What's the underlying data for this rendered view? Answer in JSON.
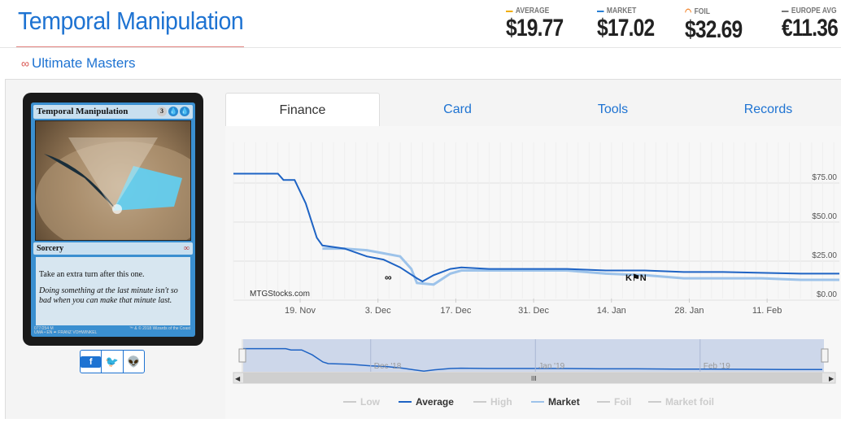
{
  "header": {
    "title": "Temporal Manipulation",
    "set_name": "Ultimate Masters",
    "prices": [
      {
        "label": "AVERAGE",
        "value": "$19.77",
        "color": "#f0ad00"
      },
      {
        "label": "MARKET",
        "value": "$17.02",
        "color": "#2a7fd4"
      },
      {
        "label": "FOIL",
        "value": "$32.69",
        "color": "#f07a1a"
      },
      {
        "label": "EUROPE AVG",
        "value": "€11.36",
        "color": "#777777"
      }
    ]
  },
  "card": {
    "name": "Temporal Manipulation",
    "mana": [
      "3",
      "U",
      "U"
    ],
    "type": "Sorcery",
    "rules_text": "Take an extra turn after this one.",
    "flavor_text": "Doing something at the last minute isn't so bad when you can make that minute last.",
    "footer_line1": "077/254 M",
    "footer_line2": "UMA • EN ✒ FRANZ VOHWINKEL",
    "copyright": "™ & © 2018 Wizards of the Coast"
  },
  "share": {
    "facebook": "f",
    "twitter": "t",
    "reddit": "r"
  },
  "tabs": [
    "Finance",
    "Card",
    "Tools",
    "Records"
  ],
  "active_tab": "Finance",
  "chart_data": {
    "type": "line",
    "watermark": "MTGStocks.com",
    "x_ticks": [
      "19. Nov",
      "3. Dec",
      "17. Dec",
      "31. Dec",
      "14. Jan",
      "28. Jan",
      "11. Feb"
    ],
    "y_ticks": [
      "$0.00",
      "$25.00",
      "$50.00",
      "$75.00"
    ],
    "ylim": [
      0,
      100
    ],
    "navigator_ticks": [
      "Dec '18",
      "Jan '19",
      "Feb '19"
    ],
    "legend": [
      {
        "name": "Low",
        "active": false
      },
      {
        "name": "Average",
        "active": true,
        "color": "#1e63c4"
      },
      {
        "name": "High",
        "active": false
      },
      {
        "name": "Market",
        "active": true,
        "color": "#9dc3ea"
      },
      {
        "name": "Foil",
        "active": false
      },
      {
        "name": "Market foil",
        "active": false
      }
    ],
    "series": [
      {
        "name": "Average",
        "color": "#1e63c4",
        "points": [
          [
            "2018-11-07",
            81
          ],
          [
            "2018-11-15",
            81
          ],
          [
            "2018-11-16",
            77
          ],
          [
            "2018-11-18",
            77
          ],
          [
            "2018-11-20",
            62
          ],
          [
            "2018-11-22",
            40
          ],
          [
            "2018-11-23",
            35
          ],
          [
            "2018-11-27",
            33
          ],
          [
            "2018-12-01",
            28
          ],
          [
            "2018-12-04",
            26
          ],
          [
            "2018-12-07",
            21
          ],
          [
            "2018-12-10",
            14
          ],
          [
            "2018-12-11",
            12
          ],
          [
            "2018-12-13",
            16
          ],
          [
            "2018-12-16",
            20
          ],
          [
            "2018-12-18",
            21
          ],
          [
            "2018-12-23",
            20
          ],
          [
            "2018-12-30",
            20
          ],
          [
            "2019-01-06",
            20
          ],
          [
            "2019-01-13",
            19
          ],
          [
            "2019-01-20",
            19
          ],
          [
            "2019-01-27",
            18
          ],
          [
            "2019-02-03",
            18
          ],
          [
            "2019-02-10",
            17.5
          ],
          [
            "2019-02-17",
            17
          ],
          [
            "2019-02-24",
            17
          ]
        ]
      },
      {
        "name": "Market",
        "color": "#9dc3ea",
        "points": [
          [
            "2018-11-23",
            33
          ],
          [
            "2018-11-27",
            33
          ],
          [
            "2018-12-01",
            32
          ],
          [
            "2018-12-04",
            30
          ],
          [
            "2018-12-07",
            28
          ],
          [
            "2018-12-09",
            20
          ],
          [
            "2018-12-10",
            11
          ],
          [
            "2018-12-13",
            10
          ],
          [
            "2018-12-16",
            17
          ],
          [
            "2018-12-18",
            19
          ],
          [
            "2018-12-23",
            19
          ],
          [
            "2018-12-30",
            19
          ],
          [
            "2019-01-06",
            19
          ],
          [
            "2019-01-13",
            17
          ],
          [
            "2019-01-20",
            16
          ],
          [
            "2019-01-27",
            14
          ],
          [
            "2019-02-03",
            14
          ],
          [
            "2019-02-10",
            14
          ],
          [
            "2019-02-17",
            13
          ],
          [
            "2019-02-24",
            13
          ]
        ]
      }
    ]
  }
}
